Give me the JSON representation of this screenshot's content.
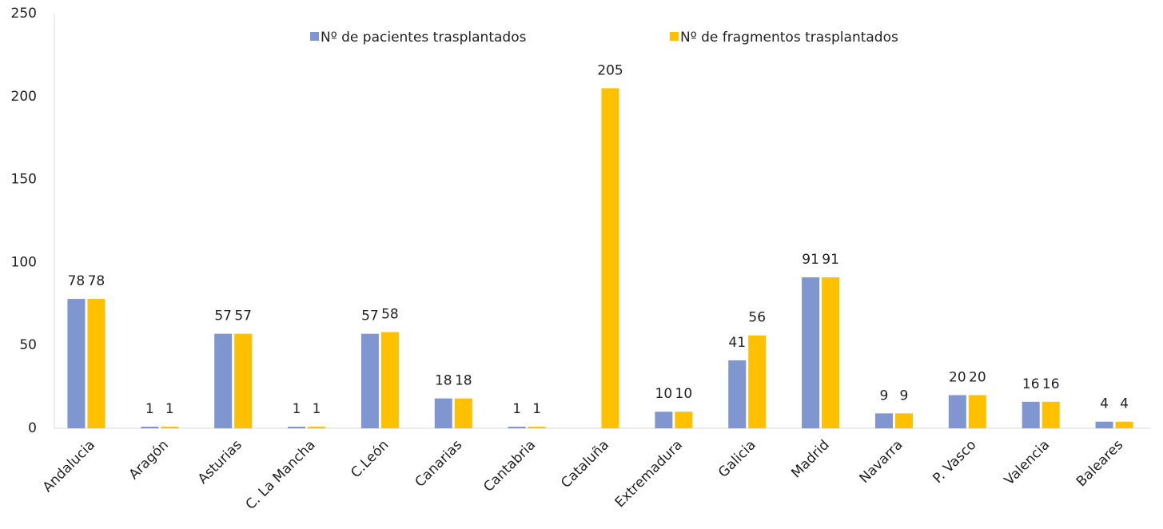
{
  "chart_data": {
    "type": "bar",
    "categories": [
      "Andalucia",
      "Aragón",
      "Asturias",
      "C. La Mancha",
      "C.León",
      "Canarias",
      "Cantabria",
      "Cataluña",
      "Extremadura",
      "Galicia",
      "Madrid",
      "Navarra",
      "P. Vasco",
      "Valencia",
      "Baleares"
    ],
    "series": [
      {
        "name": "Nº de pacientes trasplantados",
        "color": "#7f96d1",
        "values": [
          78,
          1,
          57,
          1,
          57,
          18,
          1,
          null,
          10,
          41,
          91,
          9,
          20,
          16,
          4
        ]
      },
      {
        "name": "Nº de fragmentos trasplantados",
        "color": "#ffc000",
        "values": [
          78,
          1,
          57,
          1,
          58,
          18,
          1,
          205,
          10,
          56,
          91,
          9,
          20,
          16,
          4
        ]
      }
    ],
    "ylim": [
      0,
      250
    ],
    "yticks": [
      0,
      50,
      100,
      150,
      200,
      250
    ],
    "grid": false,
    "legend": "top"
  }
}
